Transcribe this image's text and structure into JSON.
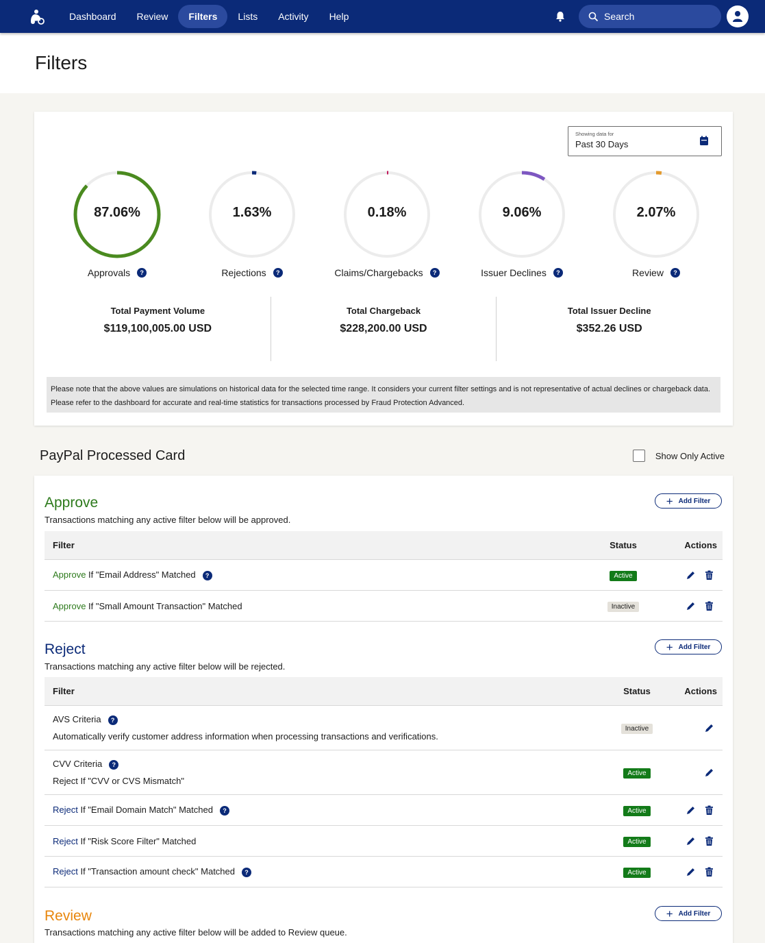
{
  "nav": {
    "items": [
      {
        "label": "Dashboard"
      },
      {
        "label": "Review"
      },
      {
        "label": "Filters"
      },
      {
        "label": "Lists"
      },
      {
        "label": "Activity"
      },
      {
        "label": "Help"
      }
    ],
    "active": "Filters",
    "search_label": "Search"
  },
  "page": {
    "title": "Filters"
  },
  "date_picker": {
    "small_label": "Showing data for",
    "value": "Past 30 Days"
  },
  "gauges": [
    {
      "value": "87.06%",
      "fraction": 0.8706,
      "label": "Approvals",
      "color": "#4a8a1f"
    },
    {
      "value": "1.63%",
      "fraction": 0.0163,
      "label": "Rejections",
      "color": "#0b2a78"
    },
    {
      "value": "0.18%",
      "fraction": 0.0018,
      "label": "Claims/Chargebacks",
      "color": "#c2185b"
    },
    {
      "value": "9.06%",
      "fraction": 0.0906,
      "label": "Issuer Declines",
      "color": "#7d57c1"
    },
    {
      "value": "2.07%",
      "fraction": 0.0207,
      "label": "Review",
      "color": "#e39a2d"
    }
  ],
  "totals": [
    {
      "label": "Total Payment Volume",
      "value": "$119,100,005.00 USD"
    },
    {
      "label": "Total Chargeback",
      "value": "$228,200.00 USD"
    },
    {
      "label": "Total Issuer Decline",
      "value": "$352.26 USD"
    }
  ],
  "note": "Please note that the above values are simulations on historical data for the selected time range. It considers your current filter settings and is not representative of actual declines or chargeback data. Please refer to the dashboard for accurate and real-time statistics for transactions processed by Fraud Protection Advanced.",
  "section": {
    "title": "PayPal Processed Card",
    "show_only_active": "Show Only Active"
  },
  "table_headers": {
    "filter": "Filter",
    "status": "Status",
    "actions": "Actions"
  },
  "add_filter": "Add Filter",
  "approve": {
    "title": "Approve",
    "desc": "Transactions matching any active filter below will be approved.",
    "rows": [
      {
        "keyword": "Approve",
        "text": " If \"Email Address\" Matched",
        "status": "Active"
      },
      {
        "keyword": "Approve",
        "text": " If \"Small Amount Transaction\" Matched",
        "status": "Inactive"
      }
    ]
  },
  "reject": {
    "title": "Reject",
    "desc": "Transactions matching any active filter below will be rejected.",
    "rows": [
      {
        "title": "AVS Criteria",
        "sub": "Automatically verify customer address information when processing transactions and verifications.",
        "status": "Inactive"
      },
      {
        "title": "CVV Criteria",
        "sub": "Reject If \"CVV or CVS Mismatch\"",
        "status": "Active"
      },
      {
        "keyword": "Reject",
        "text": " If \"Email Domain Match\" Matched",
        "status": "Active"
      },
      {
        "keyword": "Reject",
        "text": " If \"Risk Score Filter\" Matched",
        "status": "Active"
      },
      {
        "keyword": "Reject",
        "text": " If \"Transaction amount check\" Matched",
        "status": "Active"
      }
    ]
  },
  "review": {
    "title": "Review",
    "desc": "Transactions matching any active filter below will be added to Review queue."
  },
  "colors": {
    "nav": "#0b2a78",
    "approve": "#2d7a1c",
    "reject": "#0b2a78",
    "review": "#e8860c"
  }
}
